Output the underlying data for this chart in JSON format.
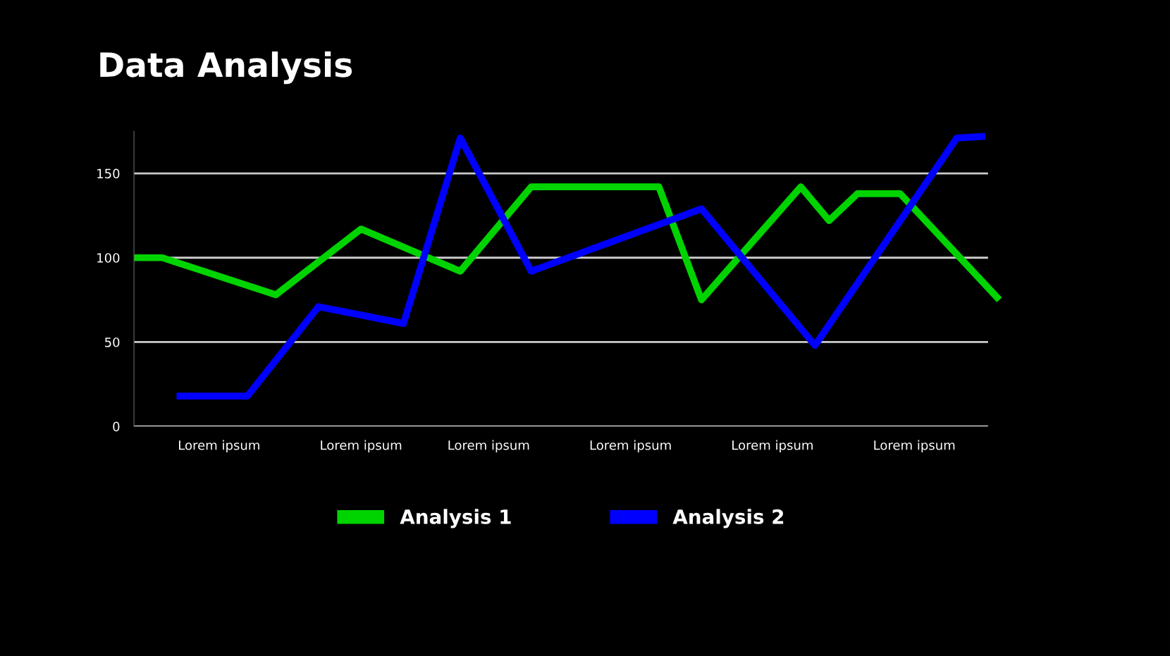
{
  "chart_data": {
    "type": "line",
    "title": "Data Analysis",
    "ylim": [
      0,
      175
    ],
    "yticks": [
      0,
      50,
      100,
      150
    ],
    "categories": [
      null,
      null,
      null,
      null,
      null,
      null,
      "Lorem ipsum",
      null,
      null,
      null,
      null,
      null,
      null,
      null,
      null,
      null,
      "Lorem ipsum",
      null,
      null,
      null,
      null,
      null,
      null,
      null,
      null,
      "Lorem ipsum",
      null,
      null,
      null,
      null,
      null,
      null,
      null,
      null,
      null,
      "Lorem ipsum",
      null,
      null,
      null,
      null,
      null,
      null,
      null,
      null,
      null,
      "Lorem ipsum",
      null,
      null,
      null,
      null,
      null,
      null,
      null,
      null,
      null,
      "Lorem ipsum",
      null,
      null,
      null,
      null,
      null,
      null
    ],
    "grid": "y",
    "legend": "bottom",
    "line_style": "solid",
    "marker": "none",
    "series": [
      {
        "name": "Analysis 1",
        "color": "#00d400",
        "values": [
          100,
          null,
          100,
          null,
          null,
          null,
          null,
          null,
          null,
          null,
          78,
          null,
          null,
          null,
          null,
          null,
          117,
          null,
          null,
          null,
          null,
          null,
          null,
          92,
          null,
          null,
          null,
          null,
          142,
          null,
          null,
          null,
          null,
          null,
          null,
          null,
          null,
          142,
          null,
          null,
          75,
          null,
          null,
          null,
          null,
          null,
          null,
          142,
          null,
          122,
          null,
          138,
          null,
          null,
          138,
          null,
          null,
          null,
          null,
          null,
          null,
          75
        ]
      },
      {
        "name": "Analysis 2",
        "color": "#0000ff",
        "values": [
          null,
          null,
          null,
          18,
          null,
          null,
          null,
          null,
          18,
          null,
          null,
          null,
          null,
          71,
          null,
          null,
          null,
          null,
          null,
          61,
          null,
          null,
          null,
          171,
          null,
          null,
          null,
          null,
          92,
          null,
          null,
          null,
          null,
          null,
          null,
          null,
          null,
          null,
          null,
          null,
          129,
          null,
          null,
          null,
          null,
          null,
          null,
          null,
          48,
          null,
          null,
          null,
          null,
          null,
          null,
          null,
          null,
          null,
          171,
          null,
          172,
          null
        ]
      }
    ]
  }
}
